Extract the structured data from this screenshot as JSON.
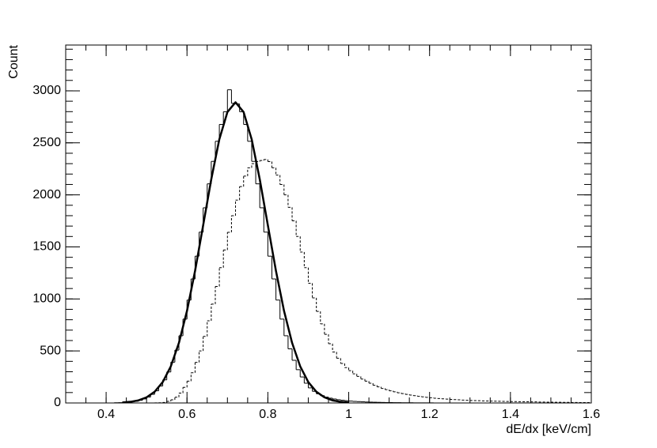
{
  "chart_data": {
    "type": "histogram",
    "x_label": "dE/dx [keV/cm]",
    "y_label": "Count",
    "xlim": [
      0.3,
      1.6
    ],
    "ylim": [
      0,
      3440
    ],
    "xticks": [
      0.4,
      0.6,
      0.8,
      1,
      1.2,
      1.4,
      1.6
    ],
    "yticks": [
      0,
      500,
      1000,
      1500,
      2000,
      2500,
      3000
    ],
    "bins": [
      0.4,
      0.41,
      0.42,
      0.43,
      0.44,
      0.45,
      0.46,
      0.47,
      0.48,
      0.49,
      0.5,
      0.51,
      0.52,
      0.53,
      0.54,
      0.55,
      0.56,
      0.57,
      0.58,
      0.59,
      0.6,
      0.61,
      0.62,
      0.63,
      0.64,
      0.65,
      0.66,
      0.67,
      0.68,
      0.69,
      0.7,
      0.71,
      0.72,
      0.73,
      0.74,
      0.75,
      0.76,
      0.77,
      0.78,
      0.79,
      0.8,
      0.81,
      0.82,
      0.83,
      0.84,
      0.85,
      0.86,
      0.87,
      0.88,
      0.89,
      0.9,
      0.91,
      0.92,
      0.93,
      0.94,
      0.95,
      0.96,
      0.97,
      0.98,
      0.99,
      1.0,
      1.01,
      1.02,
      1.03,
      1.04,
      1.05,
      1.06,
      1.07,
      1.08,
      1.09,
      1.1,
      1.11,
      1.12,
      1.13,
      1.14,
      1.15,
      1.16,
      1.17,
      1.18,
      1.19,
      1.2,
      1.21,
      1.22,
      1.23,
      1.24,
      1.25,
      1.26,
      1.27,
      1.28,
      1.29,
      1.3,
      1.31,
      1.32,
      1.33,
      1.34,
      1.35,
      1.36,
      1.37,
      1.38,
      1.39,
      1.4,
      1.41,
      1.42,
      1.43,
      1.44,
      1.45,
      1.46,
      1.47,
      1.48,
      1.49,
      1.5,
      1.51,
      1.52,
      1.53,
      1.54,
      1.55,
      1.56,
      1.57,
      1.58,
      1.59,
      1.6
    ],
    "series": [
      {
        "color": "#000000",
        "line_style": "solid",
        "values": [
          0,
          0,
          2,
          3,
          5,
          7,
          11,
          17,
          26,
          39,
          57,
          83,
          117,
          163,
          222,
          298,
          392,
          508,
          646,
          806,
          989,
          1192,
          1411,
          1642,
          1876,
          2106,
          2322,
          2515,
          2677,
          2799,
          3010,
          2880,
          2874,
          2799,
          2677,
          2515,
          2322,
          2106,
          1876,
          1642,
          1411,
          1192,
          989,
          806,
          646,
          520,
          410,
          320,
          250,
          190,
          145,
          112,
          88,
          70,
          56,
          46,
          38,
          31,
          26,
          22,
          18,
          15,
          13,
          11,
          9,
          8,
          7,
          6,
          5,
          4,
          4,
          3,
          3,
          2,
          2,
          2,
          1,
          1,
          1,
          1,
          1,
          0,
          0,
          0,
          0,
          0,
          0,
          0,
          0,
          0,
          0,
          0,
          0,
          0,
          0,
          0,
          0,
          0,
          0,
          0,
          0,
          0,
          0,
          0,
          0,
          0,
          0,
          0,
          0,
          0,
          0,
          0,
          0,
          0,
          0,
          0,
          0,
          0,
          0,
          0
        ]
      },
      {
        "color": "#000000",
        "line_style": "dashed",
        "values": [
          0,
          0,
          0,
          0,
          0,
          0,
          0,
          0,
          0,
          0,
          0,
          0,
          1,
          2,
          5,
          15,
          30,
          55,
          95,
          150,
          210,
          290,
          390,
          500,
          640,
          790,
          950,
          1120,
          1300,
          1470,
          1640,
          1800,
          1950,
          2080,
          2180,
          2260,
          2300,
          2320,
          2330,
          2340,
          2320,
          2260,
          2190,
          2100,
          2000,
          1880,
          1750,
          1600,
          1450,
          1300,
          1150,
          1010,
          880,
          760,
          660,
          570,
          490,
          430,
          380,
          340,
          310,
          280,
          255,
          230,
          210,
          190,
          170,
          155,
          140,
          128,
          117,
          107,
          98,
          90,
          83,
          76,
          70,
          64,
          59,
          54,
          50,
          46,
          43,
          40,
          37,
          34,
          32,
          30,
          28,
          26,
          24,
          23,
          22,
          20,
          19,
          18,
          17,
          16,
          15,
          14,
          13,
          13,
          12,
          11,
          11,
          10,
          10,
          9,
          9,
          8,
          8,
          7,
          7,
          6,
          6,
          5,
          5,
          4,
          4,
          4
        ]
      }
    ],
    "fit": {
      "color": "#000000",
      "x": [
        0.44,
        0.46,
        0.48,
        0.5,
        0.52,
        0.54,
        0.56,
        0.58,
        0.6,
        0.62,
        0.64,
        0.66,
        0.68,
        0.7,
        0.72,
        0.74,
        0.76,
        0.78,
        0.8,
        0.82,
        0.84,
        0.86,
        0.88,
        0.9,
        0.92,
        0.94,
        0.96,
        0.98,
        1.0
      ],
      "values": [
        5,
        11,
        25,
        54,
        108,
        201,
        352,
        577,
        885,
        1270,
        1708,
        2149,
        2534,
        2796,
        2890,
        2796,
        2534,
        2149,
        1708,
        1270,
        885,
        577,
        352,
        201,
        108,
        54,
        25,
        11,
        5
      ]
    }
  }
}
